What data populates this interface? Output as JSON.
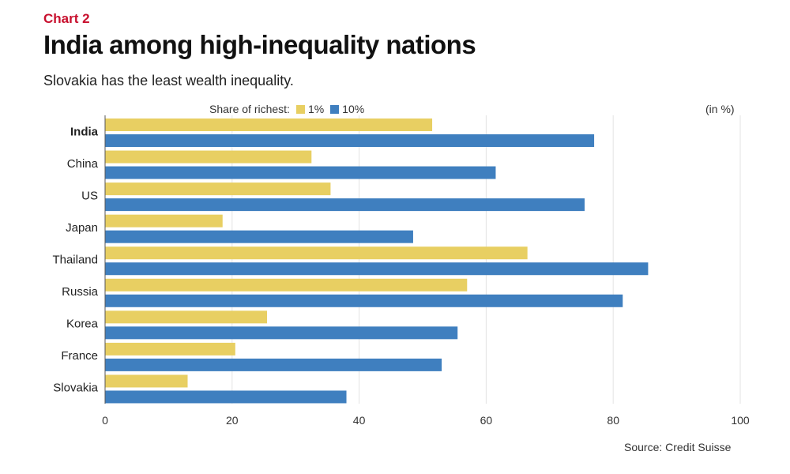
{
  "header": {
    "kicker": "Chart 2",
    "title": "India among high-inequality nations",
    "subtitle": "Slovakia has the least wealth inequality."
  },
  "legend": {
    "prefix": "Share of richest:",
    "items": [
      {
        "label": "1%",
        "color": "#e8cf62"
      },
      {
        "label": "10%",
        "color": "#3f7fbf"
      }
    ]
  },
  "unit_label": "(in %)",
  "source": "Source: Credit Suisse",
  "chart_data": {
    "type": "bar",
    "orientation": "horizontal",
    "categories": [
      "India",
      "China",
      "US",
      "Japan",
      "Thailand",
      "Russia",
      "Korea",
      "France",
      "Slovakia"
    ],
    "highlight_category": "India",
    "series": [
      {
        "name": "1%",
        "color": "#e8cf62",
        "values": [
          51.5,
          32.5,
          35.5,
          18.5,
          66.5,
          57,
          25.5,
          20.5,
          13
        ]
      },
      {
        "name": "10%",
        "color": "#3f7fbf",
        "values": [
          77,
          61.5,
          75.5,
          48.5,
          85.5,
          81.5,
          55.5,
          53,
          38
        ]
      }
    ],
    "xlim": [
      0,
      100
    ],
    "xticks": [
      0,
      20,
      40,
      60,
      80,
      100
    ],
    "grid": true,
    "legend_position": "top"
  }
}
